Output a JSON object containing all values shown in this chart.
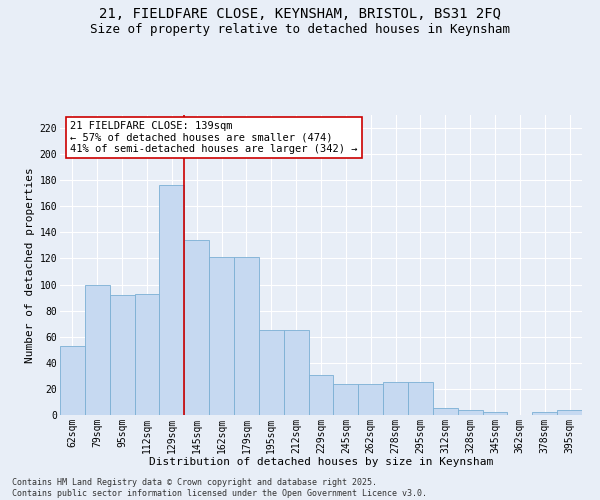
{
  "title_line1": "21, FIELDFARE CLOSE, KEYNSHAM, BRISTOL, BS31 2FQ",
  "title_line2": "Size of property relative to detached houses in Keynsham",
  "xlabel": "Distribution of detached houses by size in Keynsham",
  "ylabel": "Number of detached properties",
  "categories": [
    "62sqm",
    "79sqm",
    "95sqm",
    "112sqm",
    "129sqm",
    "145sqm",
    "162sqm",
    "179sqm",
    "195sqm",
    "212sqm",
    "229sqm",
    "245sqm",
    "262sqm",
    "278sqm",
    "295sqm",
    "312sqm",
    "328sqm",
    "345sqm",
    "362sqm",
    "378sqm",
    "395sqm"
  ],
  "values": [
    53,
    100,
    92,
    93,
    176,
    134,
    121,
    121,
    65,
    65,
    31,
    24,
    24,
    25,
    25,
    5,
    4,
    2,
    0,
    2,
    4
  ],
  "bar_color": "#c6d9f1",
  "bar_edge_color": "#7bafd4",
  "bar_width": 1.0,
  "reference_line_x": 4.5,
  "reference_line_color": "#cc0000",
  "annotation_text": "21 FIELDFARE CLOSE: 139sqm\n← 57% of detached houses are smaller (474)\n41% of semi-detached houses are larger (342) →",
  "annotation_box_color": "#ffffff",
  "annotation_box_edge_color": "#cc0000",
  "ylim": [
    0,
    230
  ],
  "yticks": [
    0,
    20,
    40,
    60,
    80,
    100,
    120,
    140,
    160,
    180,
    200,
    220
  ],
  "background_color": "#e8eef7",
  "footer_text": "Contains HM Land Registry data © Crown copyright and database right 2025.\nContains public sector information licensed under the Open Government Licence v3.0.",
  "title_fontsize": 10,
  "subtitle_fontsize": 9,
  "axis_label_fontsize": 8,
  "tick_fontsize": 7,
  "annotation_fontsize": 7.5,
  "footer_fontsize": 6
}
